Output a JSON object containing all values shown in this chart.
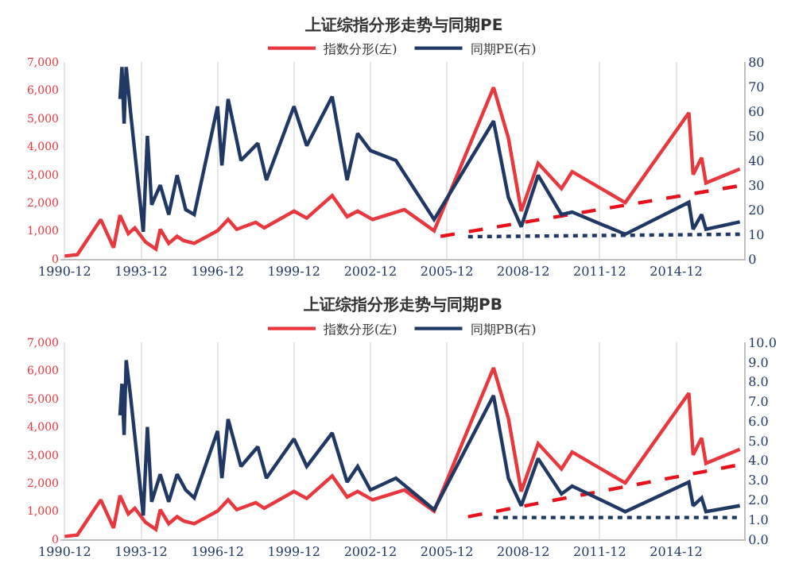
{
  "chart_data": [
    {
      "type": "line",
      "title": "上证综指分形走势与同期PE",
      "legend": "top",
      "grid": "x",
      "xlim": [
        "1990-10",
        "2017-08"
      ],
      "xticks": [
        "1990-12",
        "1993-12",
        "1996-12",
        "1999-12",
        "2002-12",
        "2005-12",
        "2008-12",
        "2011-12",
        "2014-12"
      ],
      "ylim": [
        0,
        7000
      ],
      "yticks": [
        0,
        {
          "value": 1000,
          "label": "1,000"
        },
        {
          "value": 2000,
          "label": "2,000"
        },
        {
          "value": 3000,
          "label": "3,000"
        },
        {
          "value": 4000,
          "label": "4,000"
        },
        {
          "value": 5000,
          "label": "5,000"
        },
        {
          "value": 6000,
          "label": "6,000"
        },
        {
          "value": 7000,
          "label": "7,000"
        }
      ],
      "y2lim": [
        0,
        80
      ],
      "y2ticks": [
        0,
        10,
        20,
        30,
        40,
        50,
        60,
        70,
        80
      ],
      "series": [
        {
          "name": "指数分形(左)",
          "color": "#e8383d",
          "line_style": "solid",
          "x": [
            "1990-12",
            "1991-06",
            "1992-05",
            "1992-11",
            "1993-02",
            "1993-06",
            "1993-09",
            "1994-02",
            "1994-07",
            "1994-09",
            "1995-01",
            "1995-05",
            "1995-08",
            "1996-01",
            "1996-12",
            "1997-05",
            "1997-09",
            "1998-06",
            "1998-10",
            "1999-12",
            "2000-06",
            "2001-06",
            "2002-01",
            "2002-06",
            "2003-01",
            "2004-04",
            "2005-06",
            "2007-10",
            "2008-05",
            "2008-11",
            "2009-07",
            "2010-06",
            "2010-11",
            "2012-12",
            "2015-06",
            "2015-08",
            "2015-12",
            "2016-02",
            "2017-06"
          ],
          "values": [
            100,
            150,
            1400,
            400,
            1550,
            900,
            1100,
            600,
            350,
            1050,
            550,
            800,
            650,
            550,
            1000,
            1400,
            1050,
            1300,
            1100,
            1700,
            1450,
            2250,
            1500,
            1700,
            1400,
            1750,
            1000,
            6100,
            4300,
            1700,
            3400,
            2500,
            3100,
            2000,
            5200,
            3000,
            3600,
            2700,
            3200
          ]
        },
        {
          "name": "同期PE(右)",
          "color": "#1f3864",
          "axis": "y2",
          "line_style": "solid",
          "x": [
            "1993-02",
            "1993-03",
            "1993-04",
            "1993-05",
            "1993-07",
            "1994-01",
            "1994-03",
            "1994-05",
            "1994-09",
            "1995-01",
            "1995-05",
            "1995-09",
            "1996-01",
            "1996-12",
            "1997-02",
            "1997-05",
            "1997-11",
            "1998-07",
            "1998-11",
            "1999-12",
            "2000-06",
            "2001-06",
            "2002-01",
            "2002-06",
            "2002-12",
            "2003-12",
            "2005-06",
            "2007-10",
            "2008-05",
            "2008-11",
            "2009-07",
            "2010-06",
            "2010-11",
            "2012-12",
            "2015-06",
            "2015-08",
            "2015-12",
            "2016-02",
            "2017-06"
          ],
          "values": [
            65,
            78,
            55,
            78,
            60,
            11,
            50,
            22,
            30,
            18,
            34,
            20,
            18,
            62,
            38,
            65,
            40,
            47,
            32,
            62,
            46,
            66,
            32,
            51,
            44,
            40,
            16,
            56,
            25,
            13,
            34,
            18,
            19,
            10,
            23,
            12,
            18,
            12,
            15
          ]
        },
        {
          "color": "#e8101a",
          "line_style": "dashed",
          "x": [
            "2005-09",
            "2017-06"
          ],
          "values": [
            800,
            2600
          ]
        },
        {
          "color": "#1f3864",
          "axis": "y2",
          "line_style": "dotted",
          "x": [
            "2006-10",
            "2017-06"
          ],
          "values": [
            9,
            10
          ]
        }
      ]
    },
    {
      "type": "line",
      "title": "上证综指分形走势与同期PB",
      "legend": "top",
      "grid": "x",
      "xlim": [
        "1990-10",
        "2017-08"
      ],
      "xticks": [
        "1990-12",
        "1993-12",
        "1996-12",
        "1999-12",
        "2002-12",
        "2005-12",
        "2008-12",
        "2011-12",
        "2014-12"
      ],
      "ylim": [
        0,
        7000
      ],
      "yticks": [
        0,
        {
          "value": 1000,
          "label": "1,000"
        },
        {
          "value": 2000,
          "label": "2,000"
        },
        {
          "value": 3000,
          "label": "3,000"
        },
        {
          "value": 4000,
          "label": "4,000"
        },
        {
          "value": 5000,
          "label": "5,000"
        },
        {
          "value": 6000,
          "label": "6,000"
        },
        {
          "value": 7000,
          "label": "7,000"
        }
      ],
      "y2lim": [
        0,
        10
      ],
      "y2ticks": [
        {
          "value": 0,
          "label": "0.0"
        },
        {
          "value": 1,
          "label": "1.0"
        },
        {
          "value": 2,
          "label": "2.0"
        },
        {
          "value": 3,
          "label": "3.0"
        },
        {
          "value": 4,
          "label": "4.0"
        },
        {
          "value": 5,
          "label": "5.0"
        },
        {
          "value": 6,
          "label": "6.0"
        },
        {
          "value": 7,
          "label": "7.0"
        },
        {
          "value": 8,
          "label": "8.0"
        },
        {
          "value": 9,
          "label": "9.0"
        },
        {
          "value": 10,
          "label": "10.0"
        }
      ],
      "series": [
        {
          "name": "指数分形(左)",
          "color": "#e8383d",
          "line_style": "solid",
          "x": [
            "1990-12",
            "1991-06",
            "1992-05",
            "1992-11",
            "1993-02",
            "1993-06",
            "1993-09",
            "1994-02",
            "1994-07",
            "1994-09",
            "1995-01",
            "1995-05",
            "1995-08",
            "1996-01",
            "1996-12",
            "1997-05",
            "1997-09",
            "1998-06",
            "1998-10",
            "1999-12",
            "2000-06",
            "2001-06",
            "2002-01",
            "2002-06",
            "2003-01",
            "2004-04",
            "2005-06",
            "2007-10",
            "2008-05",
            "2008-11",
            "2009-07",
            "2010-06",
            "2010-11",
            "2012-12",
            "2015-06",
            "2015-08",
            "2015-12",
            "2016-02",
            "2017-06"
          ],
          "values": [
            100,
            150,
            1400,
            400,
            1550,
            900,
            1100,
            600,
            350,
            1050,
            550,
            800,
            650,
            550,
            1000,
            1400,
            1050,
            1300,
            1100,
            1700,
            1450,
            2250,
            1500,
            1700,
            1400,
            1750,
            1000,
            6100,
            4300,
            1700,
            3400,
            2500,
            3100,
            2000,
            5200,
            3000,
            3600,
            2700,
            3200
          ]
        },
        {
          "name": "同期PB(右)",
          "color": "#1f3864",
          "axis": "y2",
          "line_style": "solid",
          "x": [
            "1993-02",
            "1993-03",
            "1993-04",
            "1993-05",
            "1993-07",
            "1994-01",
            "1994-03",
            "1994-05",
            "1994-09",
            "1995-01",
            "1995-05",
            "1995-09",
            "1996-01",
            "1996-12",
            "1997-02",
            "1997-05",
            "1997-11",
            "1998-07",
            "1998-11",
            "1999-12",
            "2000-06",
            "2001-06",
            "2002-01",
            "2002-06",
            "2002-12",
            "2003-12",
            "2005-06",
            "2007-10",
            "2008-05",
            "2008-11",
            "2009-07",
            "2010-06",
            "2010-11",
            "2012-12",
            "2015-06",
            "2015-08",
            "2015-12",
            "2016-02",
            "2017-06"
          ],
          "values": [
            6.3,
            7.9,
            5.3,
            9.1,
            7.3,
            1.2,
            5.7,
            1.9,
            3.3,
            1.9,
            3.3,
            2.5,
            2.1,
            5.5,
            3.1,
            6.1,
            3.7,
            4.7,
            3.1,
            5.1,
            3.7,
            5.4,
            2.9,
            3.7,
            2.5,
            3.1,
            1.5,
            7.3,
            3.1,
            1.7,
            4.1,
            2.3,
            2.7,
            1.4,
            2.9,
            1.7,
            2.1,
            1.4,
            1.7
          ]
        },
        {
          "color": "#e8101a",
          "line_style": "dashed",
          "x": [
            "2006-10",
            "2017-06"
          ],
          "values": [
            800,
            2650
          ]
        },
        {
          "color": "#1f3864",
          "axis": "y2",
          "line_style": "dotted",
          "x": [
            "2007-10",
            "2017-06"
          ],
          "values": [
            1.1,
            1.1
          ]
        }
      ]
    }
  ]
}
